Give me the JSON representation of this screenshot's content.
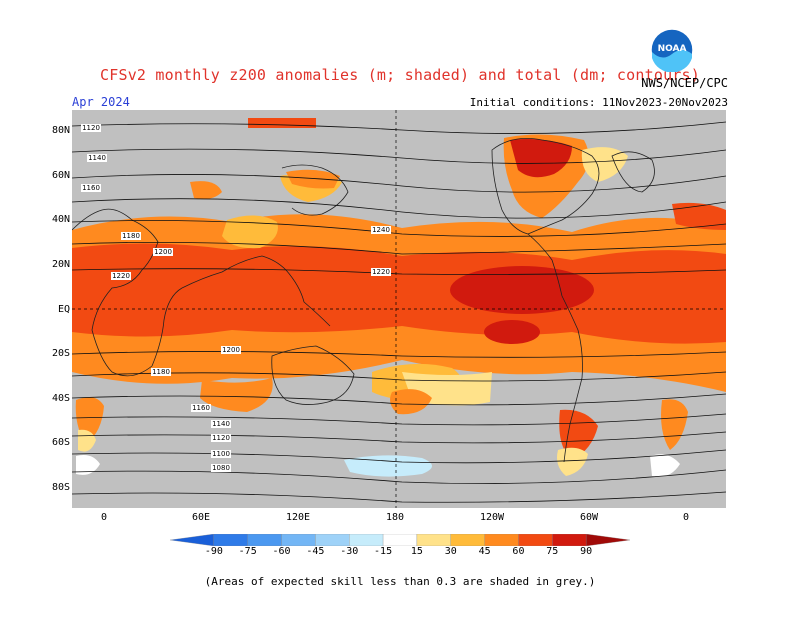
{
  "title": "CFSv2 monthly z200 anomalies (m; shaded) and total (dm; contours)",
  "agency": "NWS/NCEP/CPC",
  "month": "Apr 2024",
  "initial_conditions": "Initial conditions: 11Nov2023-20Nov2023",
  "logo_text": "NOAA",
  "lat_labels": [
    "80N",
    "60N",
    "40N",
    "20N",
    "EQ",
    "20S",
    "40S",
    "60S",
    "80S"
  ],
  "lon_labels": [
    "0",
    "60E",
    "120E",
    "180",
    "120W",
    "60W",
    "0"
  ],
  "contour_labels": [
    "1120",
    "1140",
    "1160",
    "1180",
    "1200",
    "1220",
    "1240",
    "1220",
    "1200",
    "1180",
    "1160",
    "1140",
    "1120",
    "1100",
    "1080"
  ],
  "colorbar": {
    "ticks": [
      "-90",
      "-75",
      "-60",
      "-45",
      "-30",
      "-15",
      "15",
      "30",
      "45",
      "60",
      "75",
      "90"
    ],
    "colors": [
      "#1a5fd8",
      "#2f7be8",
      "#4b98f0",
      "#73b6f5",
      "#9ed2f8",
      "#c6ecfb",
      "#ffffff",
      "#ffe28a",
      "#ffbb3a",
      "#ff8a1f",
      "#f24a12",
      "#d11a0e",
      "#a00a08"
    ]
  },
  "note": "(Areas of expected skill less than 0.3 are shaded in grey.)",
  "colors": {
    "grey": "#c0c0c0",
    "title": "#e0332b",
    "month": "#2a3fd6"
  }
}
